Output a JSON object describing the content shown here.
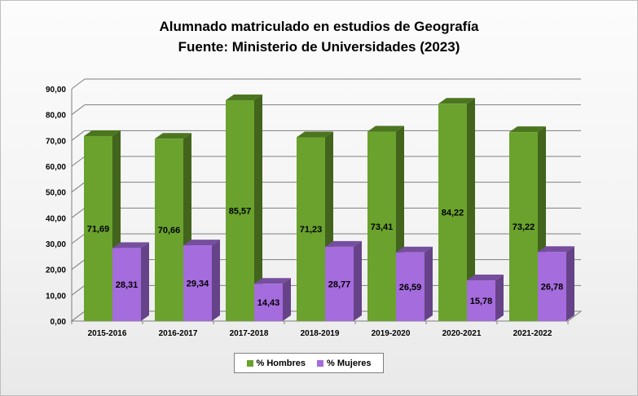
{
  "chart_data": {
    "type": "bar",
    "title": "Alumnado matriculado en estudios de Geografía",
    "subtitle": "Fuente: Ministerio de Universidades (2023)",
    "categories": [
      "2015-2016",
      "2016-2017",
      "2017-2018",
      "2018-2019",
      "2019-2020",
      "2020-2021",
      "2021-2022"
    ],
    "series": [
      {
        "name": "% Hombres",
        "values": [
          71.69,
          70.66,
          85.57,
          71.23,
          73.41,
          84.22,
          73.22
        ],
        "labels": [
          "71,69",
          "70,66",
          "85,57",
          "71,23",
          "73,41",
          "84,22",
          "73,22"
        ],
        "color": "#6aa22d"
      },
      {
        "name": "% Mujeres",
        "values": [
          28.31,
          29.34,
          14.43,
          28.77,
          26.59,
          15.78,
          26.78
        ],
        "labels": [
          "28,31",
          "29,34",
          "14,43",
          "28,77",
          "26,59",
          "15,78",
          "26,78"
        ],
        "color": "#a46cdc"
      }
    ],
    "yticks": [
      "0,00",
      "10,00",
      "20,00",
      "30,00",
      "40,00",
      "50,00",
      "60,00",
      "70,00",
      "80,00",
      "90,00"
    ],
    "ylim": [
      0,
      90
    ],
    "grid": true,
    "legend_position": "bottom",
    "style": "3d-clustered-column"
  }
}
